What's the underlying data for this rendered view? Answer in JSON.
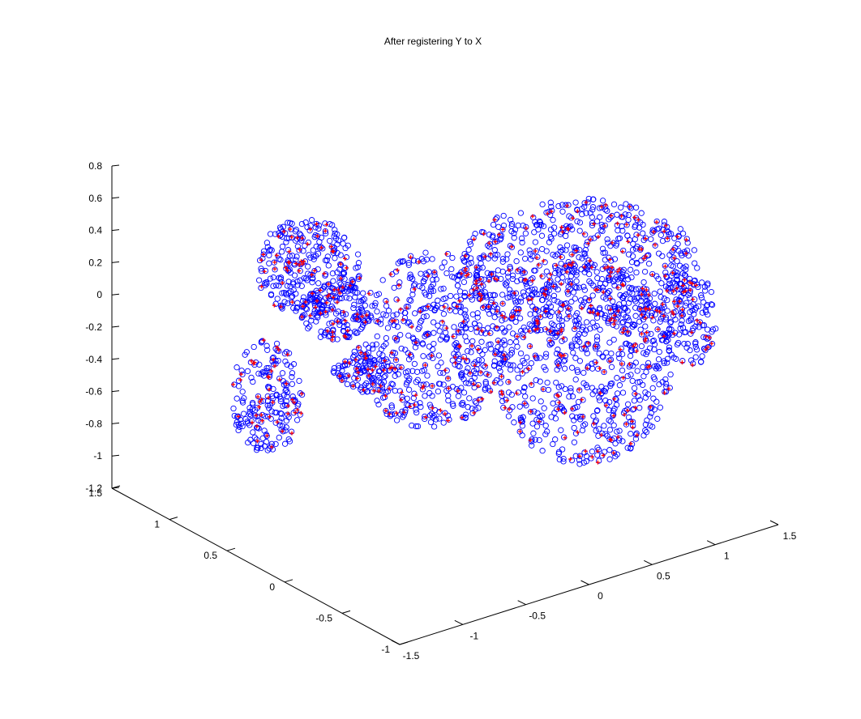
{
  "chart_data": {
    "type": "scatter",
    "title": "After registering Y to X",
    "xlabel": "",
    "ylabel": "",
    "zlabel": "",
    "axes": {
      "x_ticks": [
        "-1.5",
        "-1",
        "-0.5",
        "0",
        "0.5",
        "1",
        "1.5"
      ],
      "y_ticks": [
        "-1",
        "-0.5",
        "0",
        "0.5",
        "1",
        "1.5"
      ],
      "z_ticks": [
        "-1.2",
        "-1",
        "-0.8",
        "-0.6",
        "-0.4",
        "-0.2",
        "0",
        "0.2",
        "0.4",
        "0.6",
        "0.8"
      ],
      "xlim": [
        -1.5,
        1.5
      ],
      "ylim": [
        -1,
        1.5
      ],
      "zlim": [
        -1.2,
        0.8
      ]
    },
    "grid": false,
    "series": [
      {
        "marker": "circle",
        "color": "#0000ff"
      },
      {
        "marker": "plus",
        "color": "#ff0000"
      }
    ]
  },
  "colors": {
    "series_blue": "#0000ff",
    "series_red": "#ff0000",
    "axes": "#000000",
    "background": "#ffffff"
  }
}
